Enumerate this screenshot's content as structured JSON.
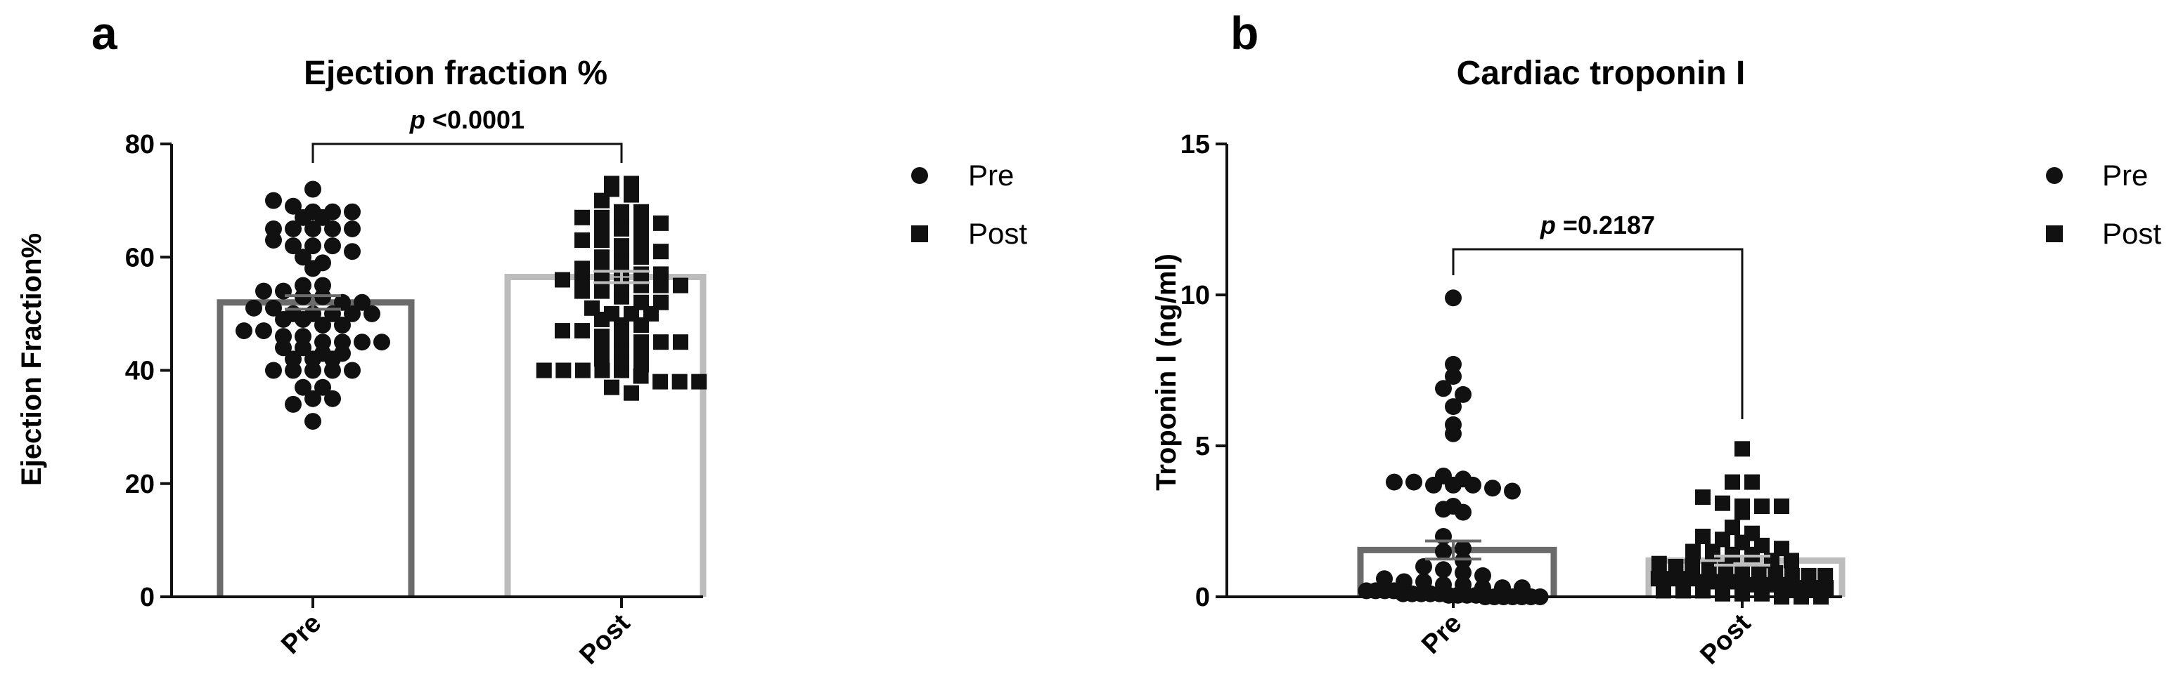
{
  "chart_data": [
    {
      "panel": "a",
      "type": "scatter",
      "title": "Ejection fraction %",
      "ylabel": "Ejection Fraction%",
      "xlabel": "",
      "categories": [
        "Pre",
        "Post"
      ],
      "ylim": [
        0,
        80
      ],
      "yticks": [
        0,
        20,
        40,
        60,
        80
      ],
      "bars": [
        {
          "category": "Pre",
          "mean": 52,
          "sem": 1.2,
          "color": "#6b6b6b"
        },
        {
          "category": "Post",
          "mean": 56.5,
          "sem": 1.0,
          "color": "#bcbcbc"
        }
      ],
      "significance": {
        "p_prefix": "p",
        "p_text": "<0.0001",
        "between": [
          "Pre",
          "Post"
        ]
      },
      "legend": {
        "placement": "right",
        "entries": [
          {
            "label": "Pre",
            "marker": "circle"
          },
          {
            "label": "Post",
            "marker": "square"
          }
        ]
      },
      "series": [
        {
          "name": "Pre",
          "marker": "circle",
          "values": [
            70,
            31,
            34,
            72,
            69,
            68,
            68,
            68,
            67,
            67,
            65,
            65,
            65,
            65,
            65,
            63,
            62,
            62,
            62,
            61,
            60,
            59,
            58,
            55,
            55,
            54,
            54,
            53,
            53,
            52,
            52,
            51,
            51,
            50,
            50,
            50,
            50,
            50,
            49,
            49,
            48,
            48,
            47,
            47,
            46,
            46,
            45,
            45,
            45,
            45,
            44,
            44,
            43,
            43,
            42,
            42,
            42,
            40,
            40,
            40,
            40,
            40,
            37,
            37,
            35,
            35
          ]
        },
        {
          "name": "Post",
          "marker": "square",
          "values": [
            73,
            73,
            72,
            71,
            70,
            68,
            68,
            67,
            67,
            66,
            66,
            66,
            65,
            65,
            64,
            63,
            63,
            62,
            62,
            61,
            60,
            60,
            60,
            58,
            58,
            58,
            57,
            57,
            56,
            56,
            56,
            55,
            55,
            55,
            55,
            54,
            54,
            53,
            52,
            52,
            51,
            50,
            50,
            50,
            49,
            48,
            48,
            47,
            47,
            46,
            46,
            45,
            45,
            45,
            44,
            44,
            43,
            42,
            42,
            41,
            40,
            40,
            40,
            40,
            40,
            39,
            38,
            38,
            38,
            37,
            36
          ]
        }
      ]
    },
    {
      "panel": "b",
      "type": "scatter",
      "title": "Cardiac troponin I",
      "ylabel": "Troponin I (ng/ml)",
      "xlabel": "",
      "categories": [
        "Pre",
        "Post"
      ],
      "ylim": [
        0,
        15
      ],
      "yticks": [
        0,
        5,
        10,
        15
      ],
      "bars": [
        {
          "category": "Pre",
          "mean": 1.55,
          "sem": 0.3,
          "color": "#6b6b6b"
        },
        {
          "category": "Post",
          "mean": 1.2,
          "sem": 0.15,
          "color": "#bcbcbc"
        }
      ],
      "significance": {
        "p_prefix": "p",
        "p_text": "=0.2187",
        "between": [
          "Pre",
          "Post"
        ]
      },
      "legend": {
        "placement": "right",
        "entries": [
          {
            "label": "Pre",
            "marker": "circle"
          },
          {
            "label": "Post",
            "marker": "square"
          }
        ]
      },
      "series": [
        {
          "name": "Pre",
          "marker": "circle",
          "values": [
            9.9,
            7.7,
            7.3,
            6.9,
            6.7,
            6.3,
            5.7,
            5.4,
            4.0,
            3.9,
            3.8,
            3.8,
            3.7,
            3.7,
            3.7,
            3.6,
            3.5,
            3.0,
            2.9,
            2.8,
            2.0,
            1.6,
            1.5,
            1.2,
            1.0,
            0.9,
            0.8,
            0.7,
            0.6,
            0.5,
            0.5,
            0.4,
            0.4,
            0.3,
            0.3,
            0.3,
            0.2,
            0.2,
            0.2,
            0.2,
            0.1,
            0.1,
            0.1,
            0.1,
            0.1,
            0.05,
            0.05,
            0.05,
            0.05,
            0.0,
            0.0,
            0.0,
            0.0,
            0.0,
            0.0,
            0.0
          ]
        },
        {
          "name": "Post",
          "marker": "square",
          "values": [
            4.9,
            3.8,
            3.8,
            3.3,
            3.1,
            3.0,
            3.0,
            3.0,
            2.8,
            2.3,
            2.1,
            2.0,
            1.9,
            1.8,
            1.7,
            1.6,
            1.5,
            1.5,
            1.4,
            1.4,
            1.2,
            1.2,
            1.1,
            1.0,
            1.0,
            0.9,
            0.9,
            0.8,
            0.8,
            0.8,
            0.7,
            0.7,
            0.7,
            0.6,
            0.6,
            0.6,
            0.5,
            0.5,
            0.5,
            0.4,
            0.4,
            0.4,
            0.3,
            0.3,
            0.3,
            0.2,
            0.2,
            0.2,
            0.1,
            0.1,
            0.1,
            0.0,
            0.0,
            0.0
          ]
        }
      ]
    }
  ]
}
